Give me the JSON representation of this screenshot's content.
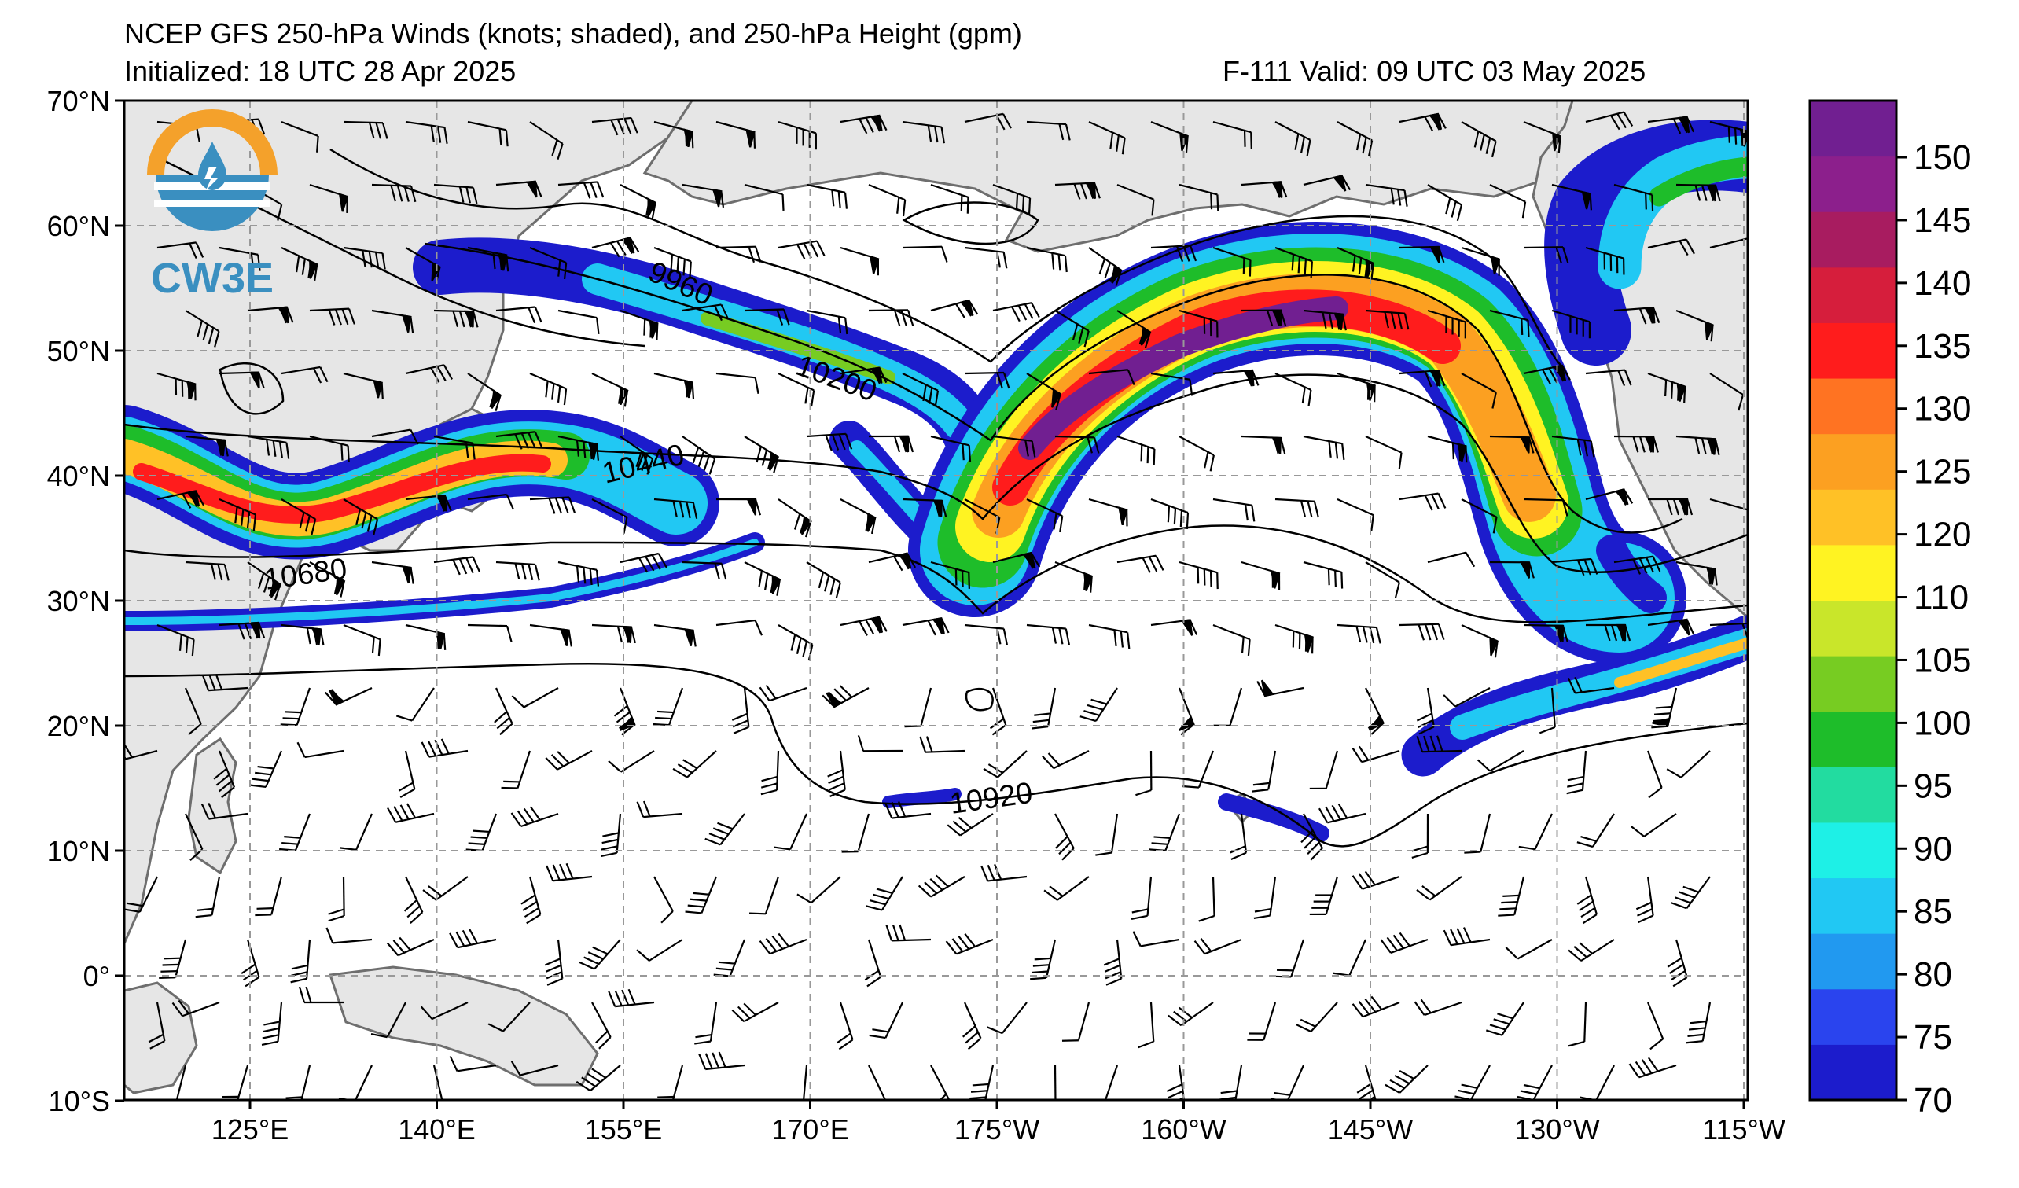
{
  "header": {
    "title": "NCEP GFS 250-hPa Winds (knots; shaded), and 250-hPa Height (gpm)",
    "initialized": "Initialized: 18 UTC 28 Apr 2025",
    "valid": "F-111  Valid: 09 UTC 03 May 2025"
  },
  "logo": {
    "text": "CW3E"
  },
  "axes": {
    "lat_labels": [
      "70°N",
      "60°N",
      "50°N",
      "40°N",
      "30°N",
      "20°N",
      "10°N",
      "0°",
      "10°S"
    ],
    "lon_labels": [
      "125°E",
      "140°E",
      "155°E",
      "170°E",
      "175°W",
      "160°W",
      "145°W",
      "130°W",
      "115°W"
    ]
  },
  "height_contours": [
    "9960",
    "10200",
    "10440",
    "10680",
    "10920"
  ],
  "colorbar": {
    "ticks": [
      "70",
      "75",
      "80",
      "85",
      "90",
      "95",
      "100",
      "105",
      "110",
      "120",
      "125",
      "130",
      "135",
      "140",
      "145",
      "150"
    ],
    "colors": [
      "#1c1ccc",
      "#2a44ee",
      "#2199f0",
      "#21c8f3",
      "#1ef0e6",
      "#22dca0",
      "#1ebd2a",
      "#77cc22",
      "#c9e62a",
      "#fff322",
      "#ffc126",
      "#fca021",
      "#ff7322",
      "#ff1c1c",
      "#d61e3c",
      "#a81c60",
      "#8c1f8c",
      "#711f91"
    ]
  },
  "colors": {
    "land": "#e6e6e6",
    "coast": "#6e6e6e",
    "grid": "#999999",
    "logo_orange": "#f4a12b",
    "logo_blue": "#3a8fc0"
  }
}
